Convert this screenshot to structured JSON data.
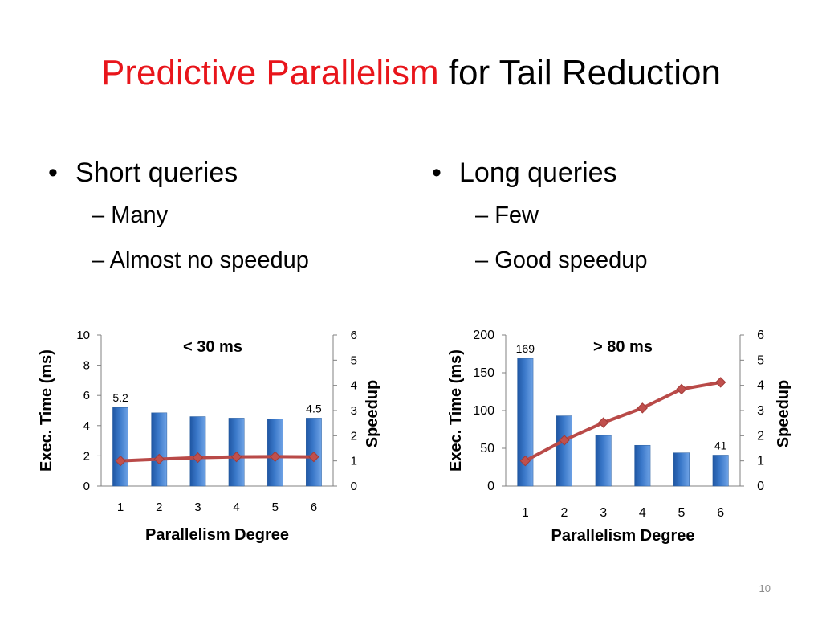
{
  "title": {
    "highlight": "Predictive Parallelism",
    "rest": "for Tail Reduction"
  },
  "bullets": [
    {
      "heading": "Short queries",
      "subs": [
        "Many",
        "Almost no speedup"
      ]
    },
    {
      "heading": "Long queries",
      "subs": [
        "Few",
        "Good speedup"
      ]
    }
  ],
  "bullet_symbol": "•",
  "dash_symbol": "–",
  "slide_number": "10",
  "colors": {
    "title_highlight": "#e8151b",
    "bar": "#3a78c9",
    "line": "#b94a48",
    "marker": "#c0504d"
  },
  "chart_data": [
    {
      "type": "bar",
      "annotation": "< 30 ms",
      "x": [
        1,
        2,
        3,
        4,
        5,
        6
      ],
      "series": [
        {
          "kind": "bar",
          "axis": "left",
          "values": [
            5.2,
            4.85,
            4.6,
            4.5,
            4.45,
            4.5
          ]
        },
        {
          "kind": "line",
          "axis": "right",
          "values": [
            1.0,
            1.07,
            1.13,
            1.16,
            1.17,
            1.16
          ]
        }
      ],
      "data_labels": [
        {
          "index": 0,
          "text": "5.2"
        },
        {
          "index": 5,
          "text": "4.5"
        }
      ],
      "xlabel": "Parallelism Degree",
      "ylabel": "Exec. Time (ms)",
      "y2label": "Speedup",
      "ylim": [
        0,
        10
      ],
      "yticks": [
        0,
        2,
        4,
        6,
        8,
        10
      ],
      "y2lim": [
        0,
        6
      ],
      "y2ticks": [
        0,
        1,
        2,
        3,
        4,
        5,
        6
      ],
      "grid": false,
      "legend": "none"
    },
    {
      "type": "bar",
      "annotation": "> 80 ms",
      "x": [
        1,
        2,
        3,
        4,
        5,
        6
      ],
      "series": [
        {
          "kind": "bar",
          "axis": "left",
          "values": [
            169,
            93,
            67,
            54,
            44,
            41
          ]
        },
        {
          "kind": "line",
          "axis": "right",
          "values": [
            1.0,
            1.82,
            2.52,
            3.1,
            3.85,
            4.12
          ]
        }
      ],
      "data_labels": [
        {
          "index": 0,
          "text": "169"
        },
        {
          "index": 5,
          "text": "41"
        }
      ],
      "xlabel": "Parallelism Degree",
      "ylabel": "Exec. Time (ms)",
      "y2label": "Speedup",
      "ylim": [
        0,
        200
      ],
      "yticks": [
        0,
        50,
        100,
        150,
        200
      ],
      "y2lim": [
        0,
        6
      ],
      "y2ticks": [
        0,
        1,
        2,
        3,
        4,
        5,
        6
      ],
      "grid": false,
      "legend": "none"
    }
  ]
}
